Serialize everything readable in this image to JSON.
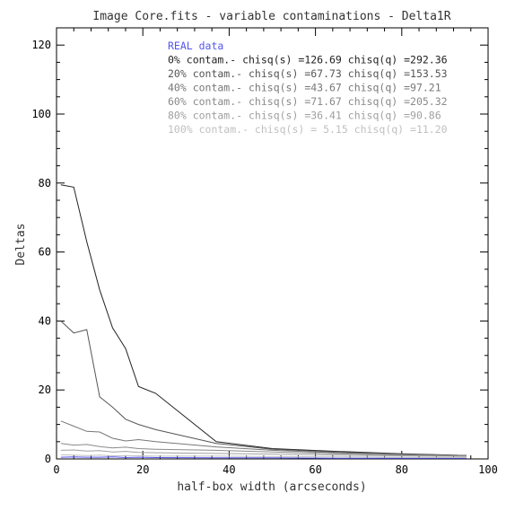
{
  "chart_data": {
    "type": "line",
    "title": "Image Core.fits - variable contaminations - Delta1R",
    "xlabel": "half-box width (arcseconds)",
    "ylabel": "Deltas",
    "xlim": [
      0,
      100
    ],
    "ylim": [
      0,
      125
    ],
    "x_ticks": [
      0,
      20,
      40,
      60,
      80,
      100
    ],
    "y_ticks": [
      0,
      20,
      40,
      60,
      80,
      100,
      120
    ],
    "grid": false,
    "legend_position": "top-center",
    "legend": [
      {
        "text": "REAL data",
        "color": "#5555ee"
      },
      {
        "text": "0% contam.- chisq(s) =126.69 chisq(q) =292.36",
        "color": "#222222"
      },
      {
        "text": "20% contam.- chisq(s) =67.73 chisq(q) =153.53",
        "color": "#555555"
      },
      {
        "text": "40% contam.- chisq(s) =43.67 chisq(q) =97.21",
        "color": "#777777"
      },
      {
        "text": "60% contam.- chisq(s) =71.67 chisq(q) =205.32",
        "color": "#8a8a8a"
      },
      {
        "text": "80% contam.- chisq(s) =36.41 chisq(q) =90.86",
        "color": "#a0a0a0"
      },
      {
        "text": "100% contam.- chisq(s) = 5.15 chisq(q) =11.20",
        "color": "#c0c0c0"
      }
    ],
    "series": [
      {
        "name": "REAL data",
        "color": "#5555ee",
        "x": [
          1,
          4,
          7,
          10,
          13,
          16,
          19,
          23,
          37,
          50,
          65,
          80,
          95
        ],
        "y": [
          0.5,
          0.6,
          0.5,
          0.5,
          0.6,
          0.4,
          0.5,
          0.4,
          0.3,
          0.3,
          0.2,
          0.2,
          0.2
        ]
      },
      {
        "name": "0% contam.- chisq(s) =126.69 chisq(q) =292.36",
        "color": "#222222",
        "x": [
          1,
          4,
          7,
          10,
          13,
          16,
          19,
          23,
          37,
          50,
          65,
          80,
          95
        ],
        "y": [
          79.5,
          78.8,
          63,
          49,
          38,
          32,
          21,
          19,
          5,
          3,
          2.2,
          1.5,
          1.0
        ]
      },
      {
        "name": "20% contam.- chisq(s) =67.73 chisq(q) =153.53",
        "color": "#555555",
        "x": [
          1,
          4,
          7,
          10,
          13,
          16,
          19,
          23,
          37,
          50,
          65,
          80,
          95
        ],
        "y": [
          40,
          36.5,
          37.5,
          18,
          15,
          11.5,
          10,
          8.5,
          4.5,
          2.8,
          2.0,
          1.4,
          1.0
        ]
      },
      {
        "name": "40% contam.- chisq(s) =43.67 chisq(q) =97.21",
        "color": "#777777",
        "x": [
          1,
          4,
          7,
          10,
          13,
          16,
          19,
          23,
          37,
          50,
          65,
          80,
          95
        ],
        "y": [
          11,
          9.5,
          8,
          7.8,
          6,
          5.2,
          5.6,
          5,
          3.5,
          2.5,
          1.8,
          1.3,
          0.9
        ]
      },
      {
        "name": "60% contam.- chisq(s) =71.67 chisq(q) =205.32",
        "color": "#8a8a8a",
        "x": [
          1,
          4,
          7,
          10,
          13,
          16,
          19,
          23,
          37,
          50,
          65,
          80,
          95
        ],
        "y": [
          4.5,
          4.0,
          4.2,
          3.6,
          3.2,
          3.4,
          3.0,
          2.8,
          2.5,
          2.0,
          1.5,
          1.1,
          0.8
        ]
      },
      {
        "name": "80% contam.- chisq(s) =36.41 chisq(q) =90.86",
        "color": "#a0a0a0",
        "x": [
          1,
          4,
          7,
          10,
          13,
          16,
          19,
          23,
          37,
          50,
          65,
          80,
          95
        ],
        "y": [
          2.5,
          2.6,
          2.3,
          2.4,
          2.0,
          2.2,
          1.9,
          1.8,
          1.6,
          1.4,
          1.1,
          0.9,
          0.7
        ]
      },
      {
        "name": "100% contam.- chisq(s) = 5.15 chisq(q) =11.20",
        "color": "#c0c0c0",
        "x": [
          1,
          4,
          7,
          10,
          13,
          16,
          19,
          23,
          37,
          50,
          65,
          80,
          95
        ],
        "y": [
          1.2,
          1.1,
          1.0,
          1.1,
          0.9,
          1.0,
          0.9,
          0.8,
          0.8,
          0.7,
          0.6,
          0.5,
          0.4
        ]
      }
    ]
  }
}
